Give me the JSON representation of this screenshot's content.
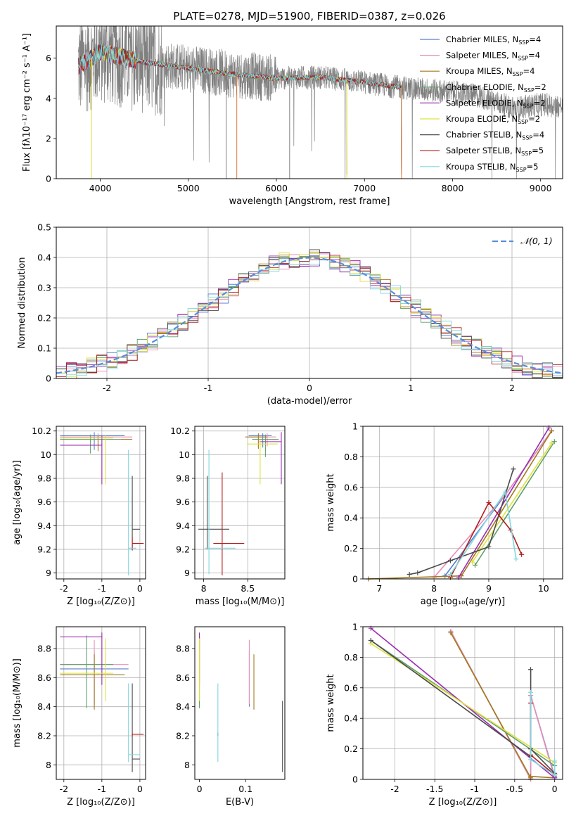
{
  "figure_title": "PLATE=0278, MJD=51900, FIBERID=0387, z=0.026",
  "series_colors": [
    "#5b7fd1",
    "#e88fb6",
    "#a4781e",
    "#5f9f6a",
    "#9a2eb0",
    "#dfe23c",
    "#4a4a4a",
    "#b31d1d",
    "#7fd7df"
  ],
  "chart_data": [
    {
      "type": "line",
      "id": "spectrum",
      "xlabel": "wavelength [Angstrom, rest frame]",
      "ylabel": "Flux [fλ10⁻¹⁷ erg cm⁻² s⁻¹ A⁻¹]",
      "xlim": [
        3500,
        9250
      ],
      "ylim": [
        0,
        7.6
      ],
      "xticks": [
        4000,
        5000,
        6000,
        7000,
        8000,
        9000
      ],
      "yticks": [
        0,
        2,
        4,
        6
      ],
      "grid": false,
      "legend_position": "top-right",
      "series": [
        {
          "name": "Chabrier MILES, N_SSP=4",
          "legend_label": "Chabrier MILES, N",
          "legend_sub": "SSP",
          "legend_suffix": "=4",
          "color": "#5b7fd1"
        },
        {
          "name": "Salpeter MILES, N_SSP=4",
          "legend_label": "Salpeter MILES, N",
          "legend_sub": "SSP",
          "legend_suffix": "=4",
          "color": "#e88fb6"
        },
        {
          "name": "Kroupa MILES, N_SSP=4",
          "legend_label": "Kroupa MILES, N",
          "legend_sub": "SSP",
          "legend_suffix": "=4",
          "color": "#a4781e"
        },
        {
          "name": "Chabrier ELODIE, N_SSP=2",
          "legend_label": "Chabrier ELODIE, N",
          "legend_sub": "SSP",
          "legend_suffix": "=2",
          "color": "#5f9f6a"
        },
        {
          "name": "Salpeter ELODIE, N_SSP=2",
          "legend_label": "Salpeter ELODIE, N",
          "legend_sub": "SSP",
          "legend_suffix": "=2",
          "color": "#9a2eb0"
        },
        {
          "name": "Kroupa ELODIE, N_SSP=2",
          "legend_label": "Kroupa ELODIE, N",
          "legend_sub": "SSP",
          "legend_suffix": "=2",
          "color": "#dfe23c"
        },
        {
          "name": "Chabrier STELIB, N_SSP=4",
          "legend_label": "Chabrier STELIB, N",
          "legend_sub": "SSP",
          "legend_suffix": "=4",
          "color": "#4a4a4a"
        },
        {
          "name": "Salpeter STELIB, N_SSP=5",
          "legend_label": "Salpeter STELIB, N",
          "legend_sub": "SSP",
          "legend_suffix": "=5",
          "color": "#b31d1d"
        },
        {
          "name": "Kroupa STELIB, N_SSP=5",
          "legend_label": "Kroupa STELIB, N",
          "legend_sub": "SSP",
          "legend_suffix": "=5",
          "color": "#7fd7df"
        }
      ],
      "continuum_points": [
        [
          3750,
          5.6
        ],
        [
          3900,
          6.0
        ],
        [
          4000,
          6.3
        ],
        [
          4200,
          6.1
        ],
        [
          4500,
          5.8
        ],
        [
          5000,
          5.5
        ],
        [
          5500,
          5.2
        ],
        [
          6000,
          5.0
        ],
        [
          6500,
          5.05
        ],
        [
          7000,
          4.8
        ],
        [
          7400,
          4.55
        ],
        [
          8000,
          4.3
        ],
        [
          8300,
          4.1
        ],
        [
          8700,
          3.5
        ],
        [
          9000,
          3.7
        ],
        [
          9250,
          3.6
        ]
      ],
      "model_range": [
        3750,
        7420
      ],
      "elodie_range": [
        3900,
        6800
      ],
      "data_range": [
        3750,
        9250
      ]
    },
    {
      "type": "histogram",
      "id": "residuals",
      "xlabel": "(data-model)/error",
      "ylabel": "Normed distribution",
      "xlim": [
        -2.5,
        2.5
      ],
      "ylim": [
        0,
        0.5
      ],
      "xticks": [
        -2,
        -1,
        0,
        1,
        2
      ],
      "yticks": [
        0.0,
        0.1,
        0.2,
        0.3,
        0.4,
        0.5
      ],
      "grid": true,
      "bin_width": 0.1,
      "legend_position": "top-right",
      "legend_label": "𝒩(0, 1)",
      "reference_curve": "normal(0,1)",
      "reference_color": "#5b8dd9"
    },
    {
      "type": "errorbar",
      "id": "age_vs_Z",
      "xlabel": "Z [log₁₀(Z/Z⊙)]",
      "ylabel": "age  [log₁₀(age/yr)]",
      "xlim": [
        -2.2,
        0.15
      ],
      "ylim": [
        8.95,
        10.24
      ],
      "xticks": [
        -2,
        -1,
        0
      ],
      "yticks": [
        9.0,
        9.2,
        9.4,
        9.6,
        9.8,
        10.0,
        10.2
      ],
      "grid": true,
      "points": [
        {
          "x": -1.2,
          "xerr": [
            0.9,
            0.8
          ],
          "y": 10.16,
          "yerr": [
            0.12,
            0.03
          ],
          "series": 0
        },
        {
          "x": -1.1,
          "xerr": [
            1.0,
            0.9
          ],
          "y": 10.15,
          "yerr": [
            0.08,
            0.03
          ],
          "series": 1
        },
        {
          "x": -1.1,
          "xerr": [
            1.0,
            0.9
          ],
          "y": 10.13,
          "yerr": [
            0.1,
            0.03
          ],
          "series": 2
        },
        {
          "x": -1.3,
          "xerr": [
            0.8,
            0.8
          ],
          "y": 10.13,
          "yerr": [
            0.12,
            0.04
          ],
          "series": 3
        },
        {
          "x": -1.0,
          "xerr": [
            1.1,
            0.0
          ],
          "y": 10.08,
          "yerr": [
            0.33,
            0.08
          ],
          "series": 4
        },
        {
          "x": -0.9,
          "xerr": [
            1.2,
            0.2
          ],
          "y": 10.14,
          "yerr": [
            0.39,
            0.02
          ],
          "series": 5
        },
        {
          "x": -0.2,
          "xerr": [
            0.0,
            0.2
          ],
          "y": 9.37,
          "yerr": [
            0.18,
            0.45
          ],
          "series": 6
        },
        {
          "x": -0.2,
          "xerr": [
            0.0,
            0.3
          ],
          "y": 9.25,
          "yerr": [
            0.05,
            0.05
          ],
          "series": 7
        },
        {
          "x": -0.3,
          "xerr": [
            0.0,
            0.2
          ],
          "y": 9.21,
          "yerr": [
            0.23,
            0.83
          ],
          "series": 8
        }
      ]
    },
    {
      "type": "errorbar",
      "id": "age_vs_mass",
      "xlabel": "mass [log₁₀(M/M⊙)]",
      "ylabel": "",
      "xlim": [
        7.9,
        8.92
      ],
      "ylim": [
        8.95,
        10.24
      ],
      "xticks": [
        8.0,
        8.5
      ],
      "yticks": [
        9.0,
        9.2,
        9.4,
        9.6,
        9.8,
        10.0,
        10.2
      ],
      "grid": true,
      "points": [
        {
          "x": 8.67,
          "xerr": [
            0.16,
            0.1
          ],
          "y": 10.16,
          "yerr": [
            0.1,
            0.02
          ],
          "series": 0
        },
        {
          "x": 8.72,
          "xerr": [
            0.2,
            0.1
          ],
          "y": 10.15,
          "yerr": [
            0.08,
            0.03
          ],
          "series": 1
        },
        {
          "x": 8.62,
          "xerr": [
            0.15,
            0.1
          ],
          "y": 10.15,
          "yerr": [
            0.1,
            0.03
          ],
          "series": 2
        },
        {
          "x": 8.7,
          "xerr": [
            0.15,
            0.15
          ],
          "y": 10.13,
          "yerr": [
            0.15,
            0.04
          ],
          "series": 3
        },
        {
          "x": 8.88,
          "xerr": [
            0.25,
            0.0
          ],
          "y": 10.11,
          "yerr": [
            0.36,
            0.08
          ],
          "series": 4
        },
        {
          "x": 8.64,
          "xerr": [
            0.15,
            0.2
          ],
          "y": 10.09,
          "yerr": [
            0.34,
            0.04
          ],
          "series": 5
        },
        {
          "x": 8.04,
          "xerr": [
            0.1,
            0.25
          ],
          "y": 9.37,
          "yerr": [
            0.17,
            0.45
          ],
          "series": 6
        },
        {
          "x": 8.21,
          "xerr": [
            0.1,
            0.25
          ],
          "y": 9.25,
          "yerr": [
            0.27,
            0.6
          ],
          "series": 7
        },
        {
          "x": 8.06,
          "xerr": [
            0.05,
            0.3
          ],
          "y": 9.21,
          "yerr": [
            0.22,
            0.83
          ],
          "series": 8
        }
      ]
    },
    {
      "type": "line",
      "id": "weight_vs_age",
      "xlabel": "age  [log₁₀(age/yr)]",
      "ylabel": "mass weight",
      "xlim": [
        6.7,
        10.35
      ],
      "ylim": [
        0,
        1
      ],
      "xticks": [
        7,
        8,
        9,
        10
      ],
      "yticks": [
        0.0,
        0.2,
        0.4,
        0.6,
        0.8,
        1.0
      ],
      "grid": true,
      "series": [
        {
          "series": 0,
          "x": [
            8.2,
            9.3,
            10.15
          ],
          "y": [
            0.02,
            0.55,
            0.97
          ]
        },
        {
          "series": 1,
          "x": [
            8.0,
            9.3,
            10.15
          ],
          "y": [
            0.01,
            0.55,
            0.97
          ]
        },
        {
          "series": 2,
          "x": [
            6.8,
            8.5,
            10.15
          ],
          "y": [
            0.0,
            0.02,
            0.97
          ]
        },
        {
          "series": 3,
          "x": [
            8.75,
            10.2
          ],
          "y": [
            0.09,
            0.9
          ]
        },
        {
          "series": 4,
          "x": [
            8.45,
            10.1
          ],
          "y": [
            0.01,
            0.99
          ]
        },
        {
          "series": 5,
          "x": [
            8.7,
            10.15
          ],
          "y": [
            0.11,
            0.89
          ]
        },
        {
          "series": 6,
          "x": [
            7.55,
            7.7,
            8.3,
            9.0,
            9.45
          ],
          "y": [
            0.03,
            0.04,
            0.12,
            0.21,
            0.72
          ]
        },
        {
          "series": 7,
          "x": [
            8.3,
            9.0,
            9.4,
            9.6
          ],
          "y": [
            0.01,
            0.5,
            0.32,
            0.16
          ]
        },
        {
          "series": 8,
          "x": [
            8.3,
            9.3,
            9.5
          ],
          "y": [
            0.03,
            0.57,
            0.13
          ]
        }
      ]
    },
    {
      "type": "errorbar",
      "id": "mass_vs_Z",
      "xlabel": "Z [log₁₀(Z/Z⊙)]",
      "ylabel": "mass [log₁₀(M/M⊙)]",
      "xlim": [
        -2.2,
        0.15
      ],
      "ylim": [
        7.9,
        8.95
      ],
      "xticks": [
        -2,
        -1,
        0
      ],
      "yticks": [
        8.0,
        8.2,
        8.4,
        8.6,
        8.8
      ],
      "grid": true,
      "points": [
        {
          "x": -1.2,
          "xerr": [
            0.9,
            0.9
          ],
          "y": 8.66,
          "yerr": [
            0.26,
            0.12
          ],
          "series": 0
        },
        {
          "x": -1.2,
          "xerr": [
            0.9,
            0.9
          ],
          "y": 8.69,
          "yerr": [
            0.27,
            0.17
          ],
          "series": 1
        },
        {
          "x": -1.2,
          "xerr": [
            0.9,
            0.8
          ],
          "y": 8.62,
          "yerr": [
            0.24,
            0.14
          ],
          "series": 2
        },
        {
          "x": -1.4,
          "xerr": [
            0.7,
            0.7
          ],
          "y": 8.69,
          "yerr": [
            0.3,
            0.2
          ],
          "series": 3
        },
        {
          "x": -1.0,
          "xerr": [
            1.1,
            0.0
          ],
          "y": 8.88,
          "yerr": [
            0.33,
            0.03
          ],
          "series": 4
        },
        {
          "x": -0.9,
          "xerr": [
            1.2,
            0.2
          ],
          "y": 8.63,
          "yerr": [
            0.19,
            0.24
          ],
          "series": 5
        },
        {
          "x": -0.2,
          "xerr": [
            0.0,
            0.2
          ],
          "y": 8.04,
          "yerr": [
            0.09,
            0.52
          ],
          "series": 6
        },
        {
          "x": -0.2,
          "xerr": [
            0.0,
            0.3
          ],
          "y": 8.21,
          "yerr": [
            0.01,
            0.01
          ],
          "series": 7
        },
        {
          "x": -0.3,
          "xerr": [
            0.0,
            0.3
          ],
          "y": 8.07,
          "yerr": [
            0.05,
            0.49
          ],
          "series": 8
        }
      ]
    },
    {
      "type": "errorbar",
      "id": "mass_vs_EBV",
      "xlabel": "E(B-V)",
      "ylabel": "",
      "xlim": [
        -0.01,
        0.185
      ],
      "ylim": [
        7.9,
        8.95
      ],
      "xticks": [
        0.0,
        0.1
      ],
      "yticks": [
        8.0,
        8.2,
        8.4,
        8.6,
        8.8
      ],
      "grid": false,
      "points": [
        {
          "x": 0.108,
          "y": 8.66,
          "yerr": [
            0.26,
            0.12
          ],
          "series": 0
        },
        {
          "x": 0.108,
          "y": 8.69,
          "yerr": [
            0.27,
            0.17
          ],
          "series": 1
        },
        {
          "x": 0.118,
          "y": 8.62,
          "yerr": [
            0.24,
            0.14
          ],
          "series": 2
        },
        {
          "x": 0.0,
          "y": 8.69,
          "yerr": [
            0.3,
            0.2
          ],
          "series": 3
        },
        {
          "x": 0.0,
          "y": 8.88,
          "yerr": [
            0.33,
            0.03
          ],
          "series": 4
        },
        {
          "x": 0.0,
          "y": 8.63,
          "yerr": [
            0.19,
            0.24
          ],
          "series": 5
        },
        {
          "x": 0.18,
          "y": 8.04,
          "yerr": [
            0.09,
            0.4
          ],
          "series": 6
        },
        {
          "x": 0.04,
          "y": 8.21,
          "yerr": [
            0.01,
            0.01
          ],
          "series": 7
        },
        {
          "x": 0.04,
          "y": 8.07,
          "yerr": [
            0.05,
            0.49
          ],
          "series": 8
        }
      ]
    },
    {
      "type": "line",
      "id": "weight_vs_Z",
      "xlabel": "Z [log₁₀(Z/Z⊙)]",
      "ylabel": "mass weight",
      "xlim": [
        -2.4,
        0.1
      ],
      "ylim": [
        0,
        1
      ],
      "xticks": [
        -2.0,
        -1.5,
        -1.0,
        -0.5,
        0.0
      ],
      "yticks": [
        0.0,
        0.2,
        0.4,
        0.6,
        0.8,
        1.0
      ],
      "grid": true,
      "series": [
        {
          "series": 0,
          "x": [
            -1.3,
            -0.3,
            -0.3,
            0.0
          ],
          "y": [
            0.97,
            0.0,
            0.55,
            0.02
          ]
        },
        {
          "series": 1,
          "x": [
            -1.3,
            -0.3,
            -0.3,
            0.0
          ],
          "y": [
            0.97,
            0.0,
            0.55,
            0.01
          ]
        },
        {
          "series": 2,
          "x": [
            -1.3,
            -0.3,
            -0.3,
            0.0
          ],
          "y": [
            0.96,
            0.01,
            0.02,
            0.01
          ]
        },
        {
          "series": 3,
          "x": [
            -2.3,
            0.0
          ],
          "y": [
            0.91,
            0.09
          ]
        },
        {
          "series": 4,
          "x": [
            -2.3,
            0.0
          ],
          "y": [
            0.99,
            0.01
          ]
        },
        {
          "series": 5,
          "x": [
            -2.3,
            0.0
          ],
          "y": [
            0.89,
            0.11
          ]
        },
        {
          "series": 6,
          "x": [
            -2.3,
            -0.3,
            -0.3,
            -0.3,
            0.0,
            0.0
          ],
          "y": [
            0.91,
            0.15,
            0.72,
            0.2,
            0.04,
            0.03
          ]
        },
        {
          "series": 7,
          "x": [
            -0.3,
            -0.3,
            0.0
          ],
          "y": [
            0.5,
            0.16,
            0.03
          ]
        },
        {
          "series": 8,
          "x": [
            -0.3,
            -0.3,
            0.0,
            0.0
          ],
          "y": [
            0.57,
            0.13,
            0.03,
            0.12
          ]
        }
      ]
    }
  ]
}
